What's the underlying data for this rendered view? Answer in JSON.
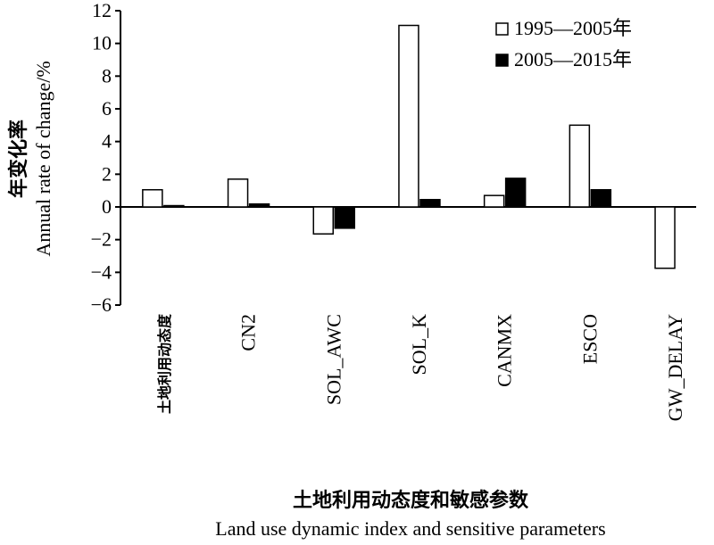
{
  "chart_data": {
    "type": "bar",
    "ylabel_cn": "年变化率",
    "ylabel_en": "Annual rate of change/%",
    "xlabel_cn": "土地利用动态度和敏感参数",
    "xlabel_en": "Land use dynamic index and sensitive parameters",
    "categories": [
      "土地利用动态度",
      "CN2",
      "SOL_AWC",
      "SOL_K",
      "CANMX",
      "ESCO",
      "GW_DELAY"
    ],
    "series": [
      {
        "name": "1995—2005年",
        "fill": "#ffffff",
        "values": [
          1.05,
          1.7,
          -1.65,
          11.1,
          0.7,
          5.0,
          -3.75
        ]
      },
      {
        "name": "2005—2015年",
        "fill": "#000000",
        "values": [
          0.08,
          0.18,
          -1.3,
          0.45,
          1.75,
          1.05,
          null
        ]
      }
    ],
    "ylim": [
      -6,
      12
    ],
    "yticks": [
      12,
      10,
      8,
      6,
      4,
      2,
      0,
      -2,
      -4,
      -6
    ],
    "ytick_labels": [
      "12",
      "10",
      "8",
      "6",
      "4",
      "2",
      "0",
      "−2",
      "−4",
      "−6"
    ],
    "grid": false,
    "legend_position": "top-right"
  }
}
